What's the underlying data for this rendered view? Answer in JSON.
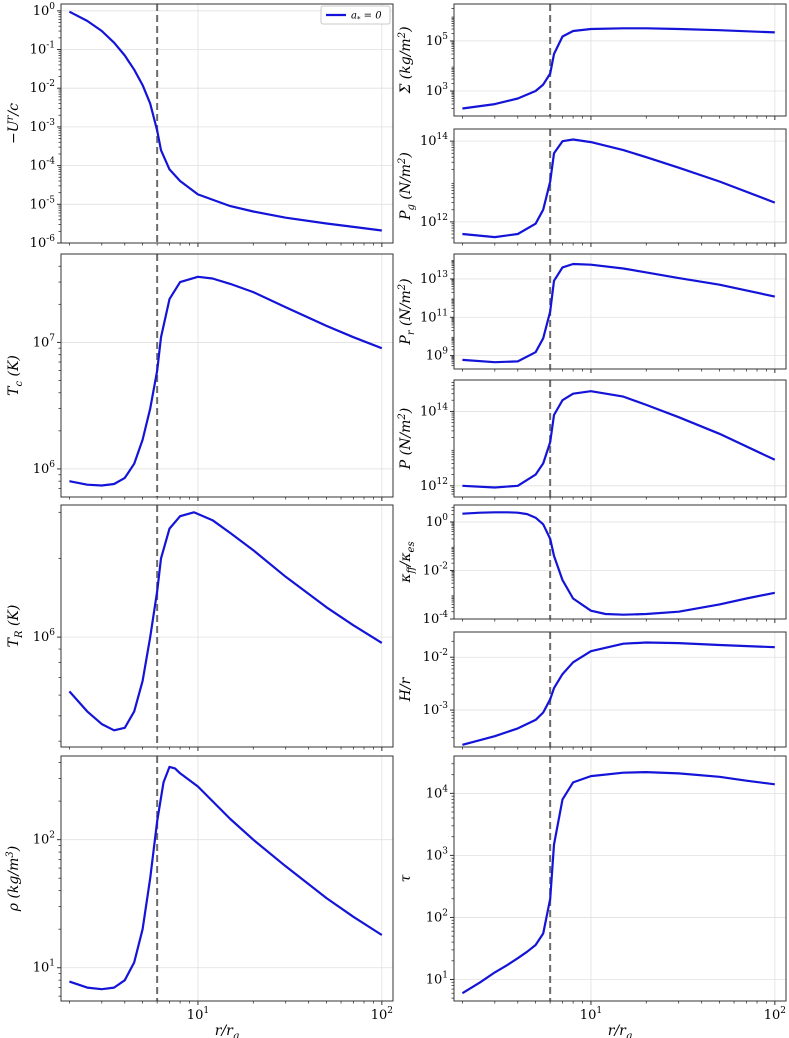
{
  "chart_data": [
    {
      "id": "ur",
      "type": "line",
      "ylabel": "−U^r/c",
      "log_y": true,
      "ylim": [
        1e-06,
        1.5
      ],
      "yticks": [
        1e-06,
        1e-05,
        0.0001,
        0.001,
        0.01,
        0.1,
        1
      ],
      "ytick_labels": [
        "10^-6",
        "10^-5",
        "10^-4",
        "10^-3",
        "10^-2",
        "10^-1",
        "10^0"
      ],
      "series": [
        {
          "name": "a_* = 0",
          "x": [
            2,
            2.5,
            3,
            3.5,
            4,
            4.5,
            5,
            5.5,
            6,
            6.3,
            7,
            8,
            10,
            15,
            20,
            30,
            50,
            70,
            100
          ],
          "y": [
            0.95,
            0.55,
            0.3,
            0.15,
            0.07,
            0.03,
            0.012,
            0.004,
            0.0008,
            0.00025,
            8e-05,
            4e-05,
            1.8e-05,
            9e-06,
            6.5e-06,
            4.5e-06,
            3.2e-06,
            2.6e-06,
            2.1e-06
          ]
        }
      ],
      "legend": {
        "placement": "upper-right",
        "entries": [
          "a_* = 0"
        ]
      }
    },
    {
      "id": "sigma",
      "type": "line",
      "ylabel": "Σ (kg/m^2)",
      "log_y": true,
      "ylim": [
        100,
        3000000
      ],
      "yticks": [
        1000,
        100000
      ],
      "ytick_labels": [
        "10^3",
        "10^5"
      ],
      "series": [
        {
          "x": [
            2,
            3,
            4,
            5,
            5.5,
            6,
            6.3,
            7,
            8,
            10,
            15,
            20,
            30,
            50,
            100
          ],
          "y": [
            200,
            300,
            500,
            1000,
            1800,
            5000,
            30000,
            150000,
            250000,
            300000,
            320000,
            320000,
            300000,
            270000,
            220000
          ]
        }
      ]
    },
    {
      "id": "pg",
      "type": "line",
      "ylabel": "P_g (N/m^2)",
      "log_y": true,
      "ylim": [
        300000000000,
        200000000000000
      ],
      "yticks": [
        1000000000000,
        100000000000000
      ],
      "ytick_labels": [
        "10^12",
        "10^14"
      ],
      "series": [
        {
          "x": [
            2,
            3,
            4,
            5,
            5.5,
            6,
            6.3,
            7,
            8,
            10,
            15,
            20,
            30,
            50,
            100
          ],
          "y": [
            500000000000,
            420000000000,
            500000000000,
            900000000000,
            2000000000000,
            10000000000000,
            50000000000000,
            100000000000000,
            110000000000000,
            95000000000000,
            60000000000000,
            40000000000000,
            22000000000000,
            10000000000000,
            3000000000000
          ]
        }
      ]
    },
    {
      "id": "tc",
      "type": "line",
      "ylabel": "T_c (K)",
      "log_y": true,
      "ylim": [
        600000,
        50000000
      ],
      "yticks": [
        1000000,
        10000000
      ],
      "ytick_labels": [
        "10^6",
        "10^7"
      ],
      "series": [
        {
          "x": [
            2,
            2.5,
            3,
            3.5,
            4,
            4.5,
            5,
            5.5,
            6,
            6.3,
            7,
            8,
            10,
            12,
            15,
            20,
            30,
            50,
            70,
            100
          ],
          "y": [
            800000,
            750000,
            740000,
            760000,
            850000,
            1100000,
            1700000,
            3000000,
            6000000,
            11000000,
            22000000,
            30000000,
            33000000,
            32000000,
            29000000,
            25000000,
            19000000,
            13500000,
            11000000,
            9000000
          ]
        }
      ]
    },
    {
      "id": "pr",
      "type": "line",
      "ylabel": "P_r (N/m^2)",
      "log_y": true,
      "ylim": [
        200000000,
        200000000000000
      ],
      "yticks": [
        1000000000,
        100000000000,
        10000000000000
      ],
      "ytick_labels": [
        "10^9",
        "10^11",
        "10^13"
      ],
      "series": [
        {
          "x": [
            2,
            3,
            4,
            5,
            5.5,
            6,
            6.3,
            7,
            8,
            10,
            15,
            20,
            30,
            50,
            100
          ],
          "y": [
            600000000,
            450000000,
            500000000,
            1500000000,
            8000000000,
            200000000000,
            8000000000000,
            40000000000000,
            60000000000000,
            55000000000000,
            35000000000000,
            22000000000000,
            11000000000000,
            5000000000000,
            1200000000000
          ]
        }
      ]
    },
    {
      "id": "p",
      "type": "line",
      "ylabel": "P (N/m^2)",
      "log_y": true,
      "ylim": [
        500000000000,
        700000000000000
      ],
      "yticks": [
        1000000000000,
        100000000000000
      ],
      "ytick_labels": [
        "10^12",
        "10^14"
      ],
      "series": [
        {
          "x": [
            2,
            3,
            4,
            5,
            5.5,
            6,
            6.3,
            7,
            8,
            10,
            15,
            20,
            30,
            50,
            100
          ],
          "y": [
            1000000000000,
            900000000000,
            1000000000000,
            2000000000000,
            4000000000000,
            15000000000000,
            80000000000000,
            200000000000000,
            300000000000000,
            350000000000000,
            250000000000000,
            150000000000000,
            70000000000000,
            25000000000000,
            5000000000000
          ]
        }
      ]
    },
    {
      "id": "kappa",
      "type": "line",
      "ylabel": "κ_ff/κ_es",
      "log_y": true,
      "ylim": [
        0.0001,
        5
      ],
      "yticks": [
        0.0001,
        0.01,
        1
      ],
      "ytick_labels": [
        "10^-4",
        "10^-2",
        "10^0"
      ],
      "series": [
        {
          "x": [
            2,
            2.5,
            3,
            3.5,
            4,
            4.5,
            5,
            5.5,
            6,
            6.3,
            7,
            8,
            10,
            12,
            15,
            20,
            30,
            50,
            70,
            100
          ],
          "y": [
            2.2,
            2.4,
            2.5,
            2.5,
            2.4,
            2.1,
            1.5,
            0.8,
            0.2,
            0.04,
            0.004,
            0.0007,
            0.00022,
            0.00016,
            0.00015,
            0.00016,
            0.0002,
            0.0004,
            0.0007,
            0.0012
          ]
        }
      ]
    },
    {
      "id": "hr",
      "type": "line",
      "ylabel": "H/r",
      "log_y": true,
      "ylim": [
        0.0002,
        0.03
      ],
      "yticks": [
        0.001,
        0.01
      ],
      "ytick_labels": [
        "10^-3",
        "10^-2"
      ],
      "series": [
        {
          "x": [
            2,
            3,
            4,
            5,
            5.5,
            6,
            6.3,
            7,
            8,
            10,
            15,
            20,
            30,
            50,
            100
          ],
          "y": [
            0.00022,
            0.00032,
            0.00045,
            0.00065,
            0.0009,
            0.0016,
            0.0026,
            0.0048,
            0.008,
            0.013,
            0.018,
            0.019,
            0.0185,
            0.017,
            0.0155
          ]
        }
      ]
    },
    {
      "id": "tr",
      "type": "line",
      "ylabel": "T_R (K)",
      "log_y": true,
      "ylim": [
        380000,
        3200000
      ],
      "yticks": [
        1000000
      ],
      "ytick_labels": [
        "10^6"
      ],
      "series": [
        {
          "x": [
            2,
            2.5,
            3,
            3.5,
            4,
            4.5,
            5,
            5.5,
            6,
            6.3,
            7,
            8,
            9.5,
            12,
            15,
            20,
            30,
            50,
            70,
            100
          ],
          "y": [
            620000,
            520000,
            465000,
            440000,
            450000,
            520000,
            680000,
            1000000,
            1500000,
            2000000,
            2600000,
            2900000,
            3000000,
            2800000,
            2500000,
            2150000,
            1700000,
            1300000,
            1110000,
            950000
          ]
        }
      ]
    },
    {
      "id": "rho",
      "type": "line",
      "ylabel": "ρ (kg/m^3)",
      "log_y": true,
      "xlabel": "r/r_g",
      "ylim": [
        5.5,
        450
      ],
      "yticks": [
        10,
        100
      ],
      "ytick_labels": [
        "10^1",
        "10^2"
      ],
      "series": [
        {
          "x": [
            2,
            2.5,
            3,
            3.5,
            4,
            4.5,
            5,
            5.5,
            6,
            6.5,
            7,
            7.5,
            8,
            10,
            15,
            20,
            30,
            50,
            70,
            100
          ],
          "y": [
            7.8,
            7.0,
            6.8,
            7.0,
            8.0,
            11.0,
            20.0,
            50.0,
            140.0,
            280.0,
            370.0,
            360.0,
            330.0,
            260.0,
            145.0,
            100.0,
            62.0,
            35.0,
            25.0,
            18.0
          ]
        }
      ]
    },
    {
      "id": "tau",
      "type": "line",
      "ylabel": "τ",
      "log_y": true,
      "xlabel": "r/r_g",
      "ylim": [
        4.5,
        40000
      ],
      "yticks": [
        10,
        100,
        1000,
        10000
      ],
      "ytick_labels": [
        "10^1",
        "10^2",
        "10^3",
        "10^4"
      ],
      "series": [
        {
          "x": [
            2,
            2.5,
            3,
            3.5,
            4,
            4.5,
            5,
            5.5,
            6,
            6.3,
            7,
            8,
            10,
            15,
            20,
            30,
            50,
            70,
            100
          ],
          "y": [
            6,
            9,
            13,
            17,
            22,
            28,
            36,
            55,
            200,
            1500,
            8000,
            15000,
            19000,
            21500,
            22000,
            21000,
            18500,
            16000,
            14000
          ]
        }
      ]
    }
  ],
  "shared_x": {
    "log": true,
    "range": [
      1.8,
      115
    ],
    "ticks": [
      10,
      100
    ],
    "tick_labels": [
      "10^1",
      "10^2"
    ],
    "minor_ticks": [
      2,
      3,
      4,
      5,
      6,
      7,
      8,
      9,
      20,
      30,
      40,
      50,
      60,
      70,
      80,
      90
    ],
    "label": "r/r_g",
    "isco": 6
  },
  "style": {
    "line_color": "#1414d8",
    "isco_color": "#6b6b6b",
    "grid_color": "#e0e0e0"
  },
  "grid": true
}
